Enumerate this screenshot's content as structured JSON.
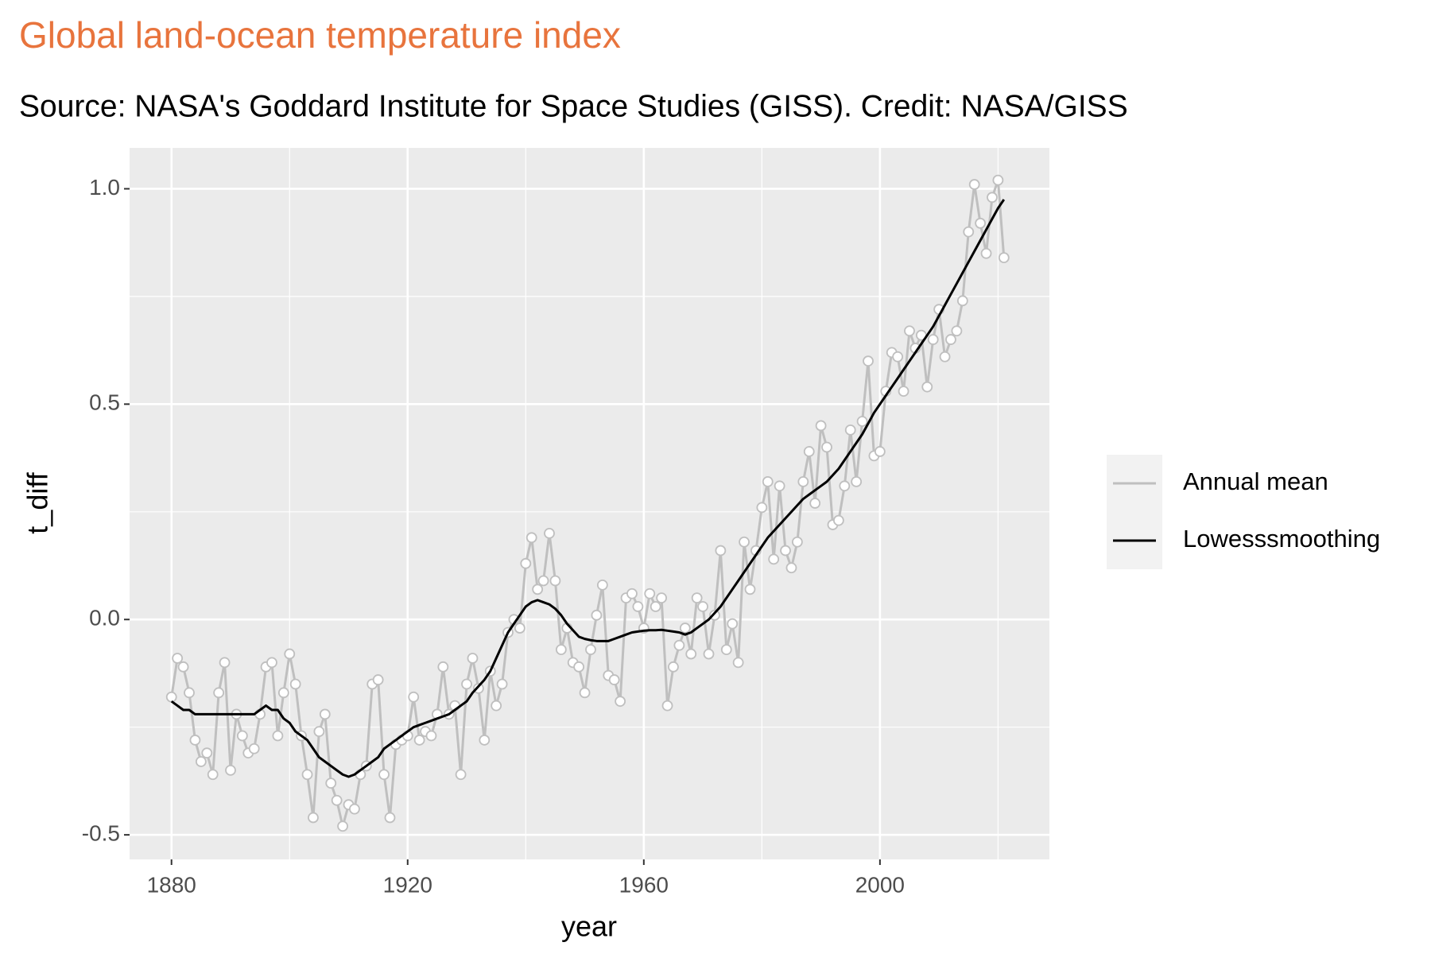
{
  "chart_data": {
    "type": "line",
    "title": "Global land-ocean temperature index",
    "subtitle": "Source: NASA's Goddard Institute for Space Studies (GISS). Credit: NASA/GISS",
    "x_label": "year",
    "y_label": "t_diff",
    "title_color": "#e8743d",
    "x": [
      1880,
      1881,
      1882,
      1883,
      1884,
      1885,
      1886,
      1887,
      1888,
      1889,
      1890,
      1891,
      1892,
      1893,
      1894,
      1895,
      1896,
      1897,
      1898,
      1899,
      1900,
      1901,
      1902,
      1903,
      1904,
      1905,
      1906,
      1907,
      1908,
      1909,
      1910,
      1911,
      1912,
      1913,
      1914,
      1915,
      1916,
      1917,
      1918,
      1919,
      1920,
      1921,
      1922,
      1923,
      1924,
      1925,
      1926,
      1927,
      1928,
      1929,
      1930,
      1931,
      1932,
      1933,
      1934,
      1935,
      1936,
      1937,
      1938,
      1939,
      1940,
      1941,
      1942,
      1943,
      1944,
      1945,
      1946,
      1947,
      1948,
      1949,
      1950,
      1951,
      1952,
      1953,
      1954,
      1955,
      1956,
      1957,
      1958,
      1959,
      1960,
      1961,
      1962,
      1963,
      1964,
      1965,
      1966,
      1967,
      1968,
      1969,
      1970,
      1971,
      1972,
      1973,
      1974,
      1975,
      1976,
      1977,
      1978,
      1979,
      1980,
      1981,
      1982,
      1983,
      1984,
      1985,
      1986,
      1987,
      1988,
      1989,
      1990,
      1991,
      1992,
      1993,
      1994,
      1995,
      1996,
      1997,
      1998,
      1999,
      2000,
      2001,
      2002,
      2003,
      2004,
      2005,
      2006,
      2007,
      2008,
      2009,
      2010,
      2011,
      2012,
      2013,
      2014,
      2015,
      2016,
      2017,
      2018,
      2019,
      2020,
      2021
    ],
    "series": [
      {
        "name": "Annual mean",
        "color": "#bfbfbf",
        "marker_fill": "#ffffff",
        "values": [
          -0.18,
          -0.09,
          -0.11,
          -0.17,
          -0.28,
          -0.33,
          -0.31,
          -0.36,
          -0.17,
          -0.1,
          -0.35,
          -0.22,
          -0.27,
          -0.31,
          -0.3,
          -0.22,
          -0.11,
          -0.1,
          -0.27,
          -0.17,
          -0.08,
          -0.15,
          -0.27,
          -0.36,
          -0.46,
          -0.26,
          -0.22,
          -0.38,
          -0.42,
          -0.48,
          -0.43,
          -0.44,
          -0.36,
          -0.34,
          -0.15,
          -0.14,
          -0.36,
          -0.46,
          -0.29,
          -0.28,
          -0.27,
          -0.18,
          -0.28,
          -0.26,
          -0.27,
          -0.22,
          -0.11,
          -0.22,
          -0.2,
          -0.36,
          -0.15,
          -0.09,
          -0.16,
          -0.28,
          -0.12,
          -0.2,
          -0.15,
          -0.03,
          0.0,
          -0.02,
          0.13,
          0.19,
          0.07,
          0.09,
          0.2,
          0.09,
          -0.07,
          -0.02,
          -0.1,
          -0.11,
          -0.17,
          -0.07,
          0.01,
          0.08,
          -0.13,
          -0.14,
          -0.19,
          0.05,
          0.06,
          0.03,
          -0.02,
          0.06,
          0.03,
          0.05,
          -0.2,
          -0.11,
          -0.06,
          -0.02,
          -0.08,
          0.05,
          0.03,
          -0.08,
          0.01,
          0.16,
          -0.07,
          -0.01,
          -0.1,
          0.18,
          0.07,
          0.16,
          0.26,
          0.32,
          0.14,
          0.31,
          0.16,
          0.12,
          0.18,
          0.32,
          0.39,
          0.27,
          0.45,
          0.4,
          0.22,
          0.23,
          0.31,
          0.44,
          0.32,
          0.46,
          0.6,
          0.38,
          0.39,
          0.53,
          0.62,
          0.61,
          0.53,
          0.67,
          0.63,
          0.66,
          0.54,
          0.65,
          0.72,
          0.61,
          0.65,
          0.67,
          0.74,
          0.9,
          1.01,
          0.92,
          0.85,
          0.98,
          1.02,
          0.84
        ]
      },
      {
        "name": "Lowesssmoothing",
        "color": "#000000",
        "values": [
          -0.19,
          -0.2,
          -0.21,
          -0.21,
          -0.22,
          -0.22,
          -0.22,
          -0.22,
          -0.22,
          -0.22,
          -0.22,
          -0.22,
          -0.22,
          -0.22,
          -0.22,
          -0.21,
          -0.2,
          -0.21,
          -0.21,
          -0.23,
          -0.24,
          -0.26,
          -0.27,
          -0.28,
          -0.3,
          -0.32,
          -0.33,
          -0.34,
          -0.35,
          -0.36,
          -0.365,
          -0.36,
          -0.35,
          -0.34,
          -0.33,
          -0.32,
          -0.3,
          -0.29,
          -0.28,
          -0.27,
          -0.26,
          -0.25,
          -0.245,
          -0.24,
          -0.235,
          -0.23,
          -0.225,
          -0.22,
          -0.21,
          -0.2,
          -0.19,
          -0.17,
          -0.155,
          -0.14,
          -0.12,
          -0.09,
          -0.06,
          -0.03,
          -0.01,
          0.01,
          0.03,
          0.04,
          0.045,
          0.04,
          0.035,
          0.025,
          0.01,
          -0.01,
          -0.025,
          -0.04,
          -0.045,
          -0.048,
          -0.05,
          -0.05,
          -0.05,
          -0.045,
          -0.04,
          -0.035,
          -0.03,
          -0.028,
          -0.026,
          -0.025,
          -0.025,
          -0.024,
          -0.026,
          -0.028,
          -0.03,
          -0.035,
          -0.03,
          -0.02,
          -0.01,
          0.0,
          0.015,
          0.03,
          0.05,
          0.07,
          0.09,
          0.11,
          0.13,
          0.15,
          0.17,
          0.19,
          0.205,
          0.22,
          0.235,
          0.25,
          0.265,
          0.28,
          0.29,
          0.3,
          0.31,
          0.32,
          0.335,
          0.35,
          0.37,
          0.39,
          0.41,
          0.43,
          0.455,
          0.48,
          0.5,
          0.52,
          0.54,
          0.56,
          0.58,
          0.6,
          0.62,
          0.64,
          0.66,
          0.68,
          0.705,
          0.73,
          0.755,
          0.78,
          0.805,
          0.83,
          0.855,
          0.88,
          0.905,
          0.93,
          0.955,
          0.975
        ]
      }
    ],
    "xlim": [
      1872.9,
      2028.7
    ],
    "xticks": [
      1880,
      1920,
      1960,
      2000
    ],
    "ylim": [
      -0.557,
      1.095
    ],
    "yticks": [
      {
        "value": -0.5,
        "label": "-0.5"
      },
      {
        "value": 0,
        "label": "0.0"
      },
      0.5,
      {
        "value": 1,
        "label": "1.0"
      }
    ],
    "grid": true,
    "legend": "right"
  }
}
